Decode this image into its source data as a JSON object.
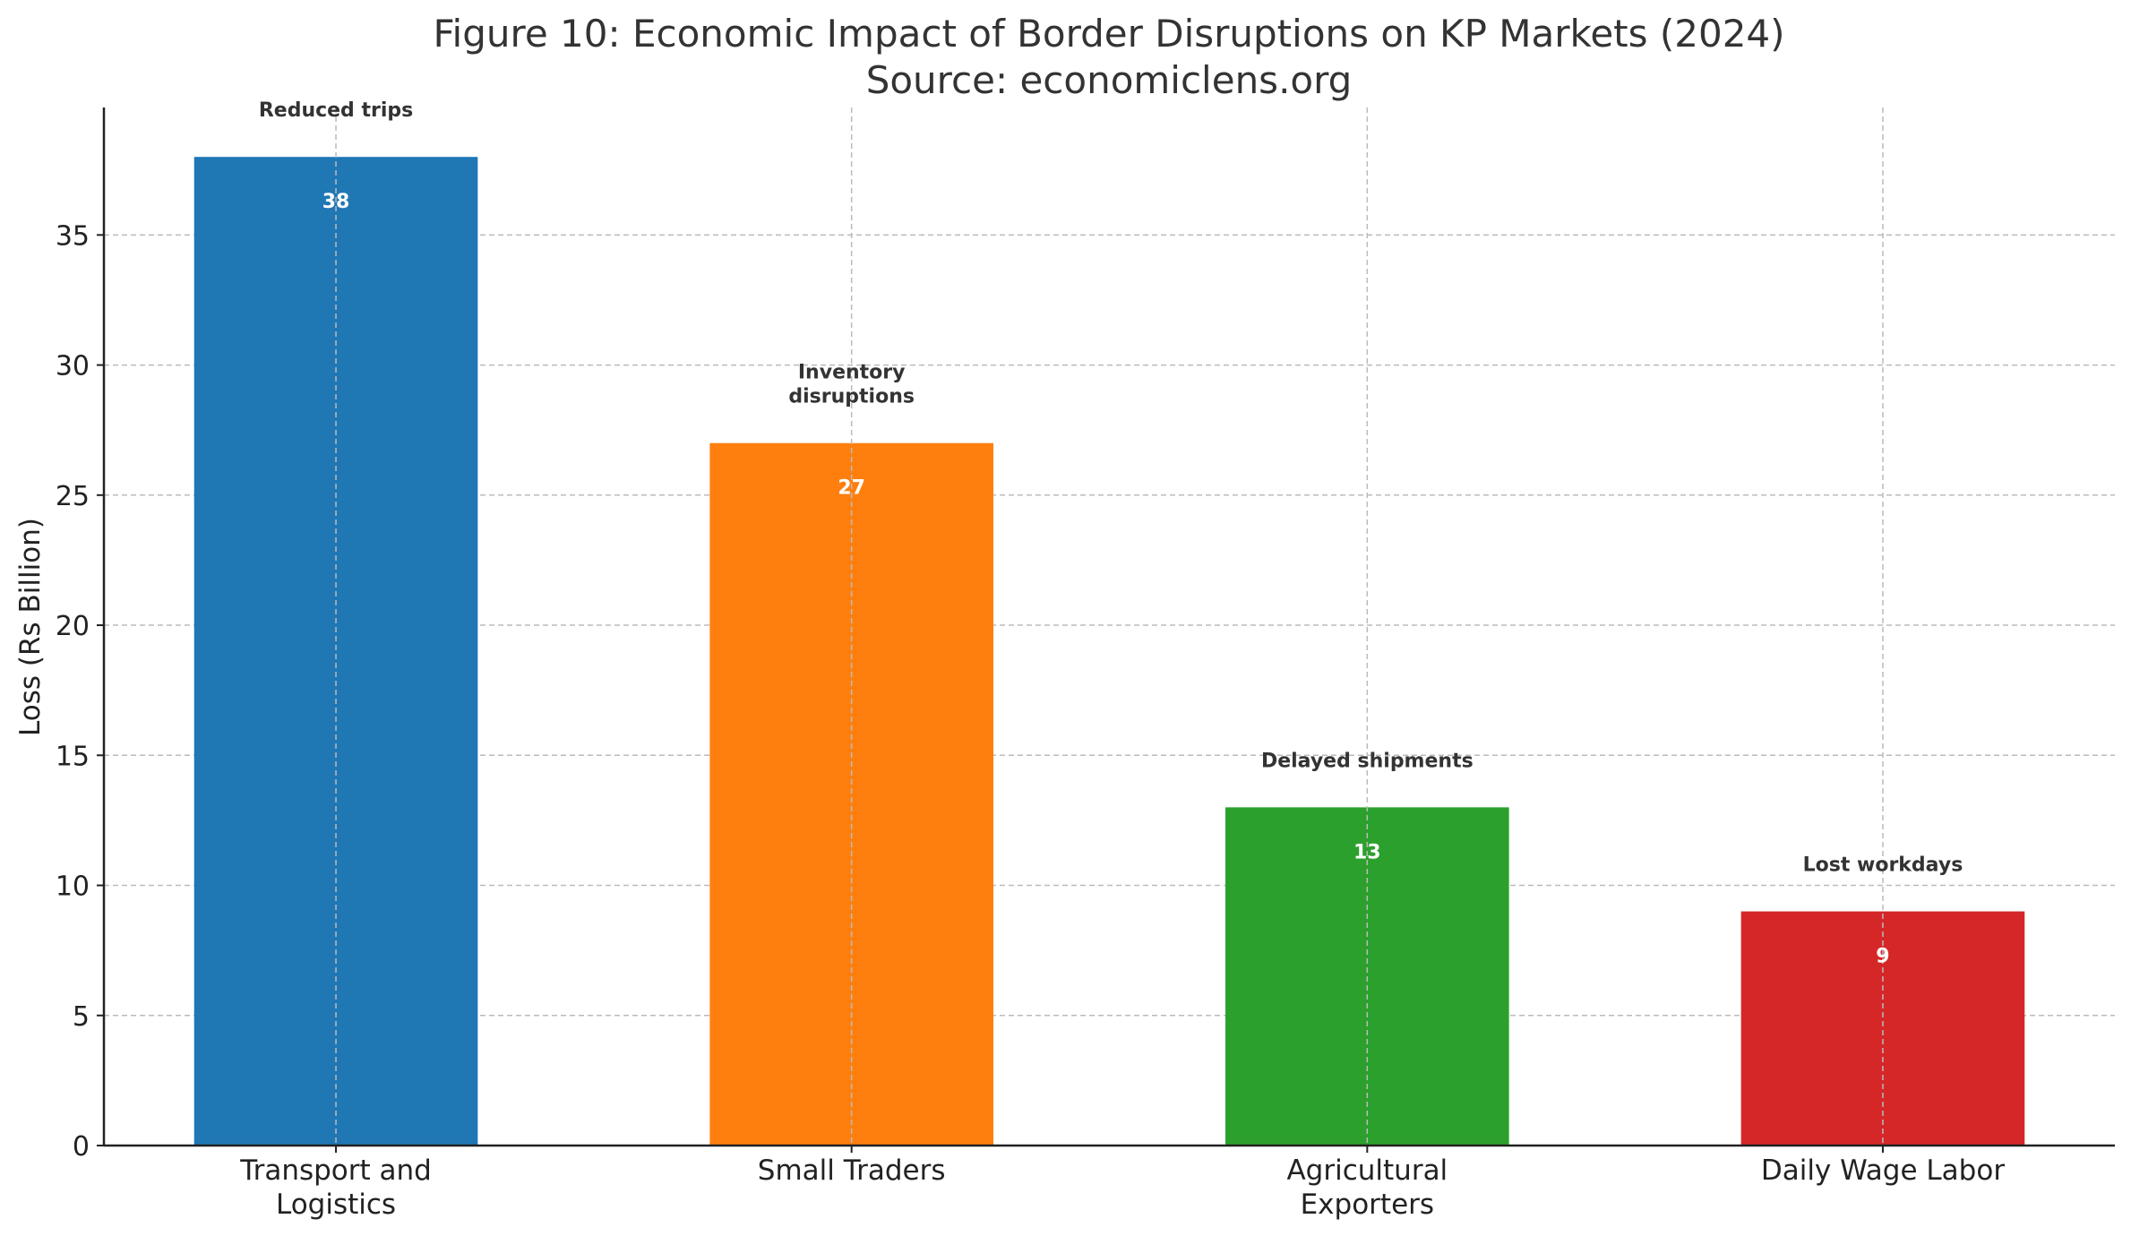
{
  "chart_data": {
    "type": "bar",
    "title": "Figure 10: Economic Impact of Border Disruptions on KP Markets (2024)",
    "subtitle": "Source: economiclens.org",
    "xlabel": "",
    "ylabel": "Loss (Rs Billion)",
    "categories": [
      [
        "Transport and",
        "Logistics"
      ],
      [
        "Small Traders"
      ],
      [
        "Agricultural",
        "Exporters"
      ],
      [
        "Daily Wage Labor"
      ]
    ],
    "values": [
      38,
      27,
      13,
      9
    ],
    "value_labels": [
      "38",
      "27",
      "13",
      "9"
    ],
    "annotations": [
      [
        "Reduced trips"
      ],
      [
        "Inventory",
        "disruptions"
      ],
      [
        "Delayed shipments"
      ],
      [
        "Lost workdays"
      ]
    ],
    "colors": [
      "#1f77b4",
      "#ff7f0e",
      "#2ca02c",
      "#d62728"
    ],
    "ylim": [
      0,
      39.9
    ],
    "yticks": [
      0,
      5,
      10,
      15,
      20,
      25,
      30,
      35
    ],
    "grid": true
  }
}
